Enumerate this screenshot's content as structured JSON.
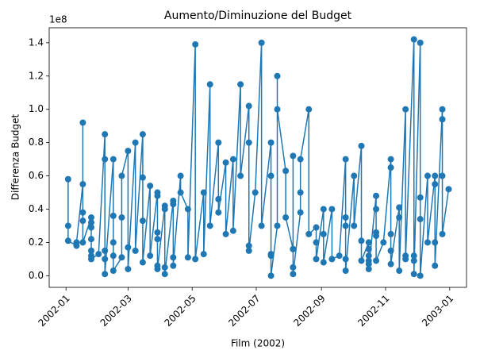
{
  "chart_data": {
    "type": "line",
    "title": "Aumento/Diminuzione del Budget",
    "x_label": "Film (2002)",
    "y_label": "Differenza Budget",
    "y_offset_label": "1e8",
    "color": "#1f77b4",
    "markers": true,
    "grid": false,
    "x": [
      "2002-01-03",
      "2002-01-03",
      "2002-01-03",
      "2002-01-11",
      "2002-01-11",
      "2002-01-17",
      "2002-01-17",
      "2002-01-17",
      "2002-01-17",
      "2002-01-17",
      "2002-01-25",
      "2002-01-25",
      "2002-01-25",
      "2002-01-25",
      "2002-01-25",
      "2002-01-25",
      "2002-01-25",
      "2002-02-01",
      "2002-02-07",
      "2002-02-07",
      "2002-02-07",
      "2002-02-07",
      "2002-02-07",
      "2002-02-15",
      "2002-02-15",
      "2002-02-15",
      "2002-02-15",
      "2002-02-15",
      "2002-02-23",
      "2002-02-23",
      "2002-02-23",
      "2002-03-01",
      "2002-03-01",
      "2002-03-01",
      "2002-03-08",
      "2002-03-08",
      "2002-03-15",
      "2002-03-15",
      "2002-03-15",
      "2002-03-15",
      "2002-03-22",
      "2002-03-22",
      "2002-03-29",
      "2002-03-29",
      "2002-03-29",
      "2002-03-29",
      "2002-03-29",
      "2002-03-29",
      "2002-04-05",
      "2002-04-05",
      "2002-04-05",
      "2002-04-05",
      "2002-04-13",
      "2002-04-13",
      "2002-04-13",
      "2002-04-13",
      "2002-04-20",
      "2002-04-20",
      "2002-04-27",
      "2002-04-27",
      "2002-05-04",
      "2002-05-04",
      "2002-05-12",
      "2002-05-12",
      "2002-05-18",
      "2002-05-18",
      "2002-05-26",
      "2002-05-26",
      "2002-05-26",
      "2002-06-02",
      "2002-06-02",
      "2002-06-09",
      "2002-06-09",
      "2002-06-16",
      "2002-06-16",
      "2002-06-24",
      "2002-06-24",
      "2002-06-24",
      "2002-06-24",
      "2002-06-30",
      "2002-07-06",
      "2002-07-06",
      "2002-07-15",
      "2002-07-15",
      "2002-07-15",
      "2002-07-15",
      "2002-07-15",
      "2002-07-21",
      "2002-07-21",
      "2002-07-21",
      "2002-07-29",
      "2002-07-29",
      "2002-08-05",
      "2002-08-05",
      "2002-08-05",
      "2002-08-05",
      "2002-08-05",
      "2002-08-12",
      "2002-08-12",
      "2002-08-12",
      "2002-08-20",
      "2002-08-20",
      "2002-08-27",
      "2002-08-27",
      "2002-08-27",
      "2002-09-03",
      "2002-09-03",
      "2002-09-03",
      "2002-09-11",
      "2002-09-11",
      "2002-09-18",
      "2002-09-24",
      "2002-09-24",
      "2002-09-24",
      "2002-09-24",
      "2002-09-24",
      "2002-10-02",
      "2002-10-02",
      "2002-10-09",
      "2002-10-09",
      "2002-10-09",
      "2002-10-16",
      "2002-10-16",
      "2002-10-16",
      "2002-10-16",
      "2002-10-16",
      "2002-10-16",
      "2002-10-23",
      "2002-10-23",
      "2002-10-23",
      "2002-10-23",
      "2002-10-23",
      "2002-10-30",
      "2002-11-06",
      "2002-11-06",
      "2002-11-06",
      "2002-11-06",
      "2002-11-06",
      "2002-11-14",
      "2002-11-14",
      "2002-11-14",
      "2002-11-20",
      "2002-11-20",
      "2002-11-20",
      "2002-11-28",
      "2002-11-28",
      "2002-11-28",
      "2002-11-28",
      "2002-12-04",
      "2002-12-04",
      "2002-12-04",
      "2002-12-04",
      "2002-12-11",
      "2002-12-11",
      "2002-12-18",
      "2002-12-18",
      "2002-12-18",
      "2002-12-18",
      "2002-12-25",
      "2002-12-25",
      "2002-12-25",
      "2002-12-25",
      "2002-12-31"
    ],
    "values": [
      0.58,
      0.3,
      0.21,
      0.18,
      0.2,
      0.55,
      0.92,
      0.38,
      0.33,
      0.2,
      0.35,
      0.32,
      0.29,
      0.22,
      0.15,
      0.12,
      0.1,
      0.13,
      0.85,
      0.7,
      0.15,
      0.1,
      0.01,
      0.7,
      0.36,
      0.2,
      0.12,
      0.03,
      0.11,
      0.35,
      0.6,
      0.75,
      0.17,
      0.04,
      0.8,
      0.15,
      0.85,
      0.59,
      0.33,
      0.08,
      0.54,
      0.12,
      0.5,
      0.48,
      0.26,
      0.22,
      0.06,
      0.04,
      0.42,
      0.4,
      0.05,
      0.01,
      0.45,
      0.43,
      0.11,
      0.06,
      0.6,
      0.5,
      0.4,
      0.11,
      1.39,
      0.1,
      0.5,
      0.13,
      1.15,
      0.3,
      0.8,
      0.46,
      0.38,
      0.68,
      0.25,
      0.7,
      0.27,
      1.15,
      0.6,
      1.02,
      0.8,
      0.18,
      0.15,
      0.5,
      1.4,
      0.3,
      0.8,
      0.6,
      0.13,
      0.12,
      0.0,
      0.3,
      1.2,
      1.0,
      0.63,
      0.35,
      0.16,
      0.72,
      0.16,
      0.05,
      0.01,
      0.38,
      0.5,
      0.7,
      1.0,
      0.25,
      0.29,
      0.2,
      0.1,
      0.4,
      0.25,
      0.08,
      0.4,
      0.1,
      0.12,
      0.7,
      0.35,
      0.3,
      0.1,
      0.03,
      0.6,
      0.3,
      0.78,
      0.21,
      0.09,
      0.2,
      0.16,
      0.12,
      0.09,
      0.07,
      0.04,
      0.48,
      0.4,
      0.26,
      0.24,
      0.09,
      0.2,
      0.7,
      0.65,
      0.25,
      0.15,
      0.07,
      0.41,
      0.35,
      0.03,
      1.0,
      0.12,
      0.1,
      1.42,
      0.12,
      0.09,
      0.01,
      1.4,
      0.47,
      0.34,
      0.0,
      0.6,
      0.2,
      0.6,
      0.55,
      0.2,
      0.06,
      1.0,
      0.94,
      0.6,
      0.25,
      0.52
    ],
    "xlim": [
      "2001-12-16",
      "2003-01-17"
    ],
    "xticks": [
      {
        "value": "2002-01-01",
        "label": "2002-01"
      },
      {
        "value": "2002-03-01",
        "label": "2002-03"
      },
      {
        "value": "2002-05-01",
        "label": "2002-05"
      },
      {
        "value": "2002-07-01",
        "label": "2002-07"
      },
      {
        "value": "2002-09-01",
        "label": "2002-09"
      },
      {
        "value": "2002-11-01",
        "label": "2002-11"
      },
      {
        "value": "2003-01-01",
        "label": "2003-01"
      }
    ],
    "ylim": [
      -0.07,
      1.49
    ],
    "yticks": [
      {
        "value": 0,
        "label": "0.0"
      },
      0.2,
      0.4,
      0.6,
      0.8,
      {
        "value": 1,
        "label": "1.0"
      },
      1.2,
      1.4
    ]
  }
}
